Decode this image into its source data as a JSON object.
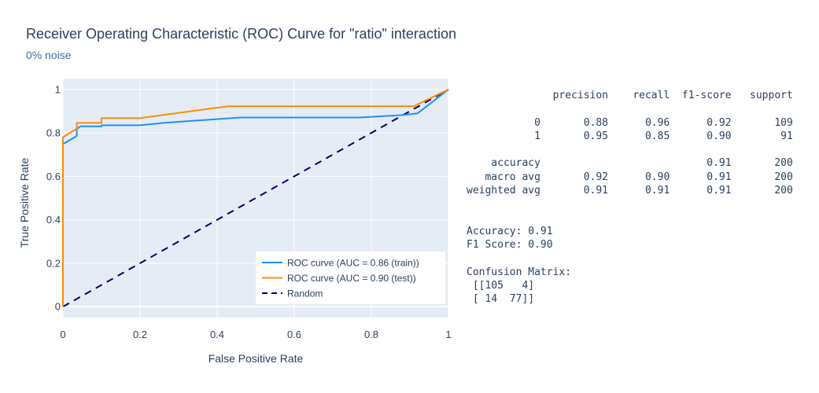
{
  "chart_data": {
    "type": "line",
    "title": "Receiver Operating Characteristic (ROC) Curve for \"ratio\" interaction",
    "subtitle": "0% noise",
    "xlabel": "False Positive Rate",
    "ylabel": "True Positive Rate",
    "xlim": [
      0,
      1
    ],
    "ylim": [
      -0.05,
      1.05
    ],
    "x_ticks": [
      "0",
      "0.2",
      "0.4",
      "0.6",
      "0.8",
      "1"
    ],
    "y_ticks": [
      "0",
      "0.2",
      "0.4",
      "0.6",
      "0.8",
      "1"
    ],
    "grid": true,
    "legend_position": "bottom-right",
    "series": [
      {
        "name": "ROC curve (AUC = 0.86 (train))",
        "color": "#1f8ffe",
        "dash": "solid",
        "x": [
          0,
          0,
          0.036,
          0.036,
          0.045,
          0.09,
          0.1,
          0.1,
          0.2,
          0.26,
          0.46,
          0.77,
          0.88,
          0.92,
          1.0
        ],
        "y": [
          0,
          0.749,
          0.786,
          0.818,
          0.83,
          0.83,
          0.83,
          0.835,
          0.835,
          0.846,
          0.871,
          0.871,
          0.882,
          0.89,
          1.0
        ]
      },
      {
        "name": "ROC curve (AUC = 0.90 (test))",
        "color": "#ff8c00",
        "dash": "solid",
        "x": [
          0,
          0,
          0.036,
          0.036,
          0.1,
          0.1,
          0.2,
          0.43,
          0.6,
          0.91,
          1.0
        ],
        "y": [
          0,
          0.78,
          0.82,
          0.846,
          0.846,
          0.868,
          0.868,
          0.923,
          0.923,
          0.923,
          1.0
        ]
      },
      {
        "name": "Random",
        "color": "#00006e",
        "dash": "dash",
        "x": [
          0,
          1
        ],
        "y": [
          0,
          1
        ]
      }
    ]
  },
  "report": {
    "lines": [
      "              precision    recall  f1-score   support",
      "",
      "           0       0.88      0.96      0.92       109",
      "           1       0.95      0.85      0.90        91",
      "",
      "    accuracy                           0.91       200",
      "   macro avg       0.92      0.90      0.91       200",
      "weighted avg       0.91      0.91      0.91       200",
      "",
      "",
      "Accuracy: 0.91",
      "F1 Score: 0.90",
      "",
      "Confusion Matrix:",
      " [[105   4]",
      " [ 14  77]]"
    ]
  },
  "colors": {
    "plot_bg": "#e5ecf6",
    "grid": "#ffffff",
    "text": "#2a3f5f"
  }
}
